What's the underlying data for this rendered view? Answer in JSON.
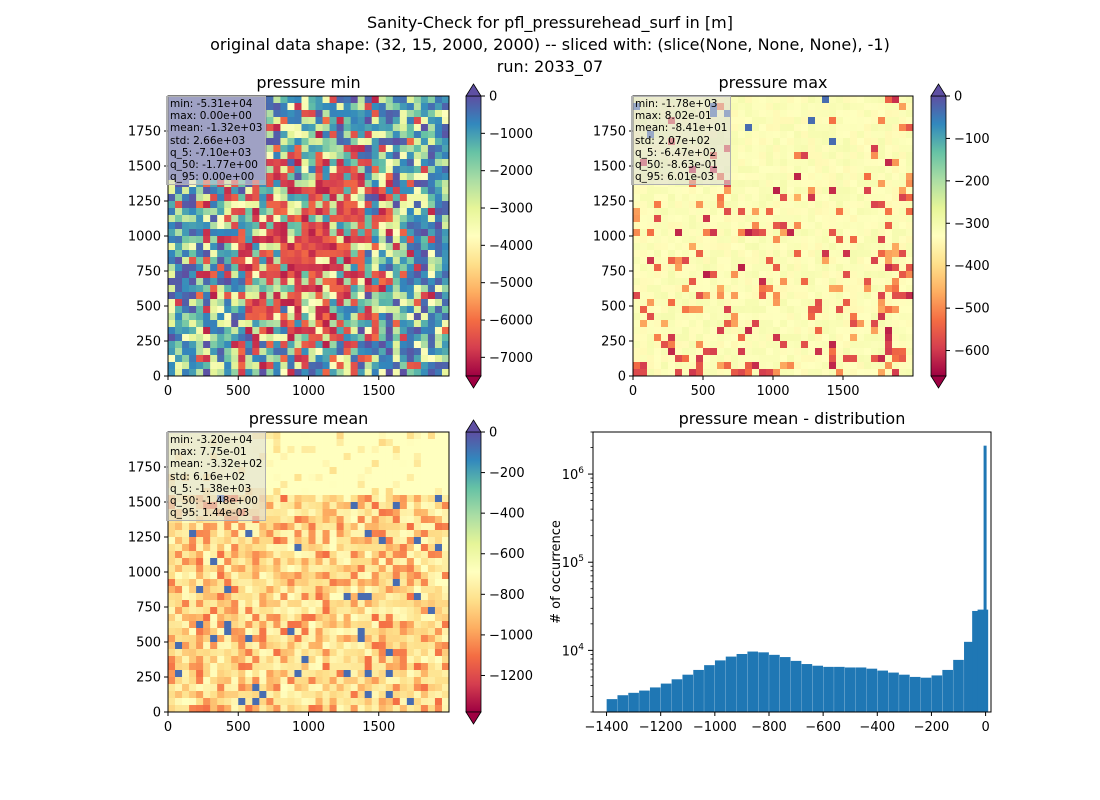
{
  "suptitle": {
    "line1": "Sanity-Check for pfl_pressurehead_surf in [m]",
    "line2": "original data shape: (32, 15, 2000, 2000) -- sliced with: (slice(None, None, None), -1)",
    "line3": "run: 2033_07"
  },
  "chart_data": [
    {
      "type": "heatmap",
      "title": "pressure min",
      "xlim": [
        0,
        2000
      ],
      "ylim": [
        0,
        2000
      ],
      "xticks": [
        0,
        500,
        1000,
        1500
      ],
      "yticks": [
        0,
        250,
        500,
        750,
        1000,
        1250,
        1500,
        1750
      ],
      "colormap": "Spectral",
      "colorbar": {
        "min": -7500,
        "max": 0,
        "ticks": [
          0,
          -1000,
          -2000,
          -3000,
          -4000,
          -5000,
          -6000,
          -7000
        ],
        "extend": "both"
      },
      "stats": [
        "min: -5.31e+04",
        "max: 0.00e+00",
        "mean: -1.32e+03",
        "std: 2.66e+03",
        "q_5: -7.10e+03",
        "q_50: -1.77e+00",
        "q_95: 0.00e+00"
      ]
    },
    {
      "type": "heatmap",
      "title": "pressure max",
      "xlim": [
        0,
        2000
      ],
      "ylim": [
        0,
        2000
      ],
      "xticks": [
        0,
        500,
        1000,
        1500
      ],
      "yticks": [
        0,
        250,
        500,
        750,
        1000,
        1250,
        1500,
        1750
      ],
      "colormap": "Spectral",
      "colorbar": {
        "min": -660,
        "max": 0,
        "ticks": [
          0,
          -100,
          -200,
          -300,
          -400,
          -500,
          -600
        ],
        "extend": "both"
      },
      "stats": [
        "min: -1.78e+03",
        "max: 8.02e-01",
        "mean: -8.41e+01",
        "std: 2.07e+02",
        "q_5: -6.47e+02",
        "q_50: -8.63e-01",
        "q_95: 6.01e-03"
      ]
    },
    {
      "type": "heatmap",
      "title": "pressure mean",
      "xlim": [
        0,
        2000
      ],
      "ylim": [
        0,
        2000
      ],
      "xticks": [
        0,
        500,
        1000,
        1500
      ],
      "yticks": [
        0,
        250,
        500,
        750,
        1000,
        1250,
        1500,
        1750
      ],
      "colormap": "Spectral",
      "colorbar": {
        "min": -1380,
        "max": 0,
        "ticks": [
          0,
          -200,
          -400,
          -600,
          -800,
          -1000,
          -1200
        ],
        "extend": "both"
      },
      "stats": [
        "min: -3.20e+04",
        "max: 7.75e-01",
        "mean: -3.32e+02",
        "std: 6.16e+02",
        "q_5: -1.38e+03",
        "q_50: -1.48e+00",
        "q_95: 1.44e-03"
      ]
    },
    {
      "type": "bar",
      "title": "pressure mean - distribution",
      "ylabel": "# of occurrence",
      "xlabel": "",
      "yscale": "log",
      "ylim": [
        2000,
        3000000
      ],
      "xlim": [
        -1450,
        20
      ],
      "xticks": [
        -1400,
        -1200,
        -1000,
        -800,
        -600,
        -400,
        -200,
        0
      ],
      "ytick_labels": [
        "10^4",
        "10^5",
        "10^6"
      ],
      "bar_color": "#1f77b4",
      "bins": [
        {
          "x": -1380,
          "y": 2800
        },
        {
          "x": -1340,
          "y": 3100
        },
        {
          "x": -1300,
          "y": 3300
        },
        {
          "x": -1260,
          "y": 3500
        },
        {
          "x": -1220,
          "y": 3800
        },
        {
          "x": -1180,
          "y": 4200
        },
        {
          "x": -1140,
          "y": 4700
        },
        {
          "x": -1100,
          "y": 5300
        },
        {
          "x": -1060,
          "y": 6000
        },
        {
          "x": -1020,
          "y": 6800
        },
        {
          "x": -980,
          "y": 7700
        },
        {
          "x": -940,
          "y": 8500
        },
        {
          "x": -900,
          "y": 9100
        },
        {
          "x": -860,
          "y": 9700
        },
        {
          "x": -820,
          "y": 9500
        },
        {
          "x": -780,
          "y": 8900
        },
        {
          "x": -740,
          "y": 8400
        },
        {
          "x": -700,
          "y": 7600
        },
        {
          "x": -660,
          "y": 7000
        },
        {
          "x": -620,
          "y": 6700
        },
        {
          "x": -580,
          "y": 6500
        },
        {
          "x": -540,
          "y": 6500
        },
        {
          "x": -500,
          "y": 6400
        },
        {
          "x": -460,
          "y": 6400
        },
        {
          "x": -420,
          "y": 6200
        },
        {
          "x": -380,
          "y": 5900
        },
        {
          "x": -340,
          "y": 5600
        },
        {
          "x": -300,
          "y": 5300
        },
        {
          "x": -260,
          "y": 5000
        },
        {
          "x": -220,
          "y": 4900
        },
        {
          "x": -180,
          "y": 5200
        },
        {
          "x": -140,
          "y": 6000
        },
        {
          "x": -100,
          "y": 7800
        },
        {
          "x": -60,
          "y": 12500
        },
        {
          "x": -30,
          "y": 28000
        },
        {
          "x": -10,
          "y": 29000
        },
        {
          "x": 0,
          "y": 2100000
        }
      ]
    }
  ]
}
